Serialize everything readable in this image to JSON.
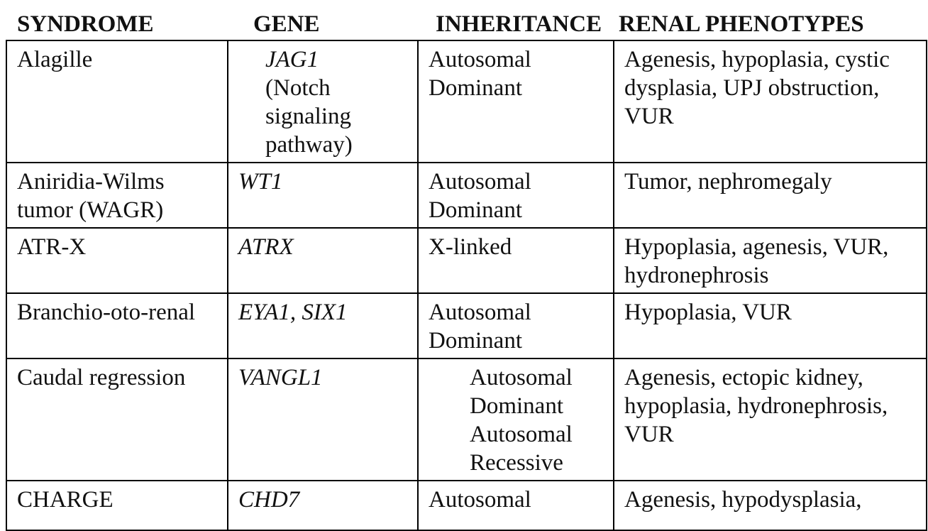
{
  "headers": {
    "syndrome": "SYNDROME",
    "gene": "GENE",
    "inheritance": "INHERITANCE",
    "renal": "RENAL PHENOTYPES"
  },
  "rows": [
    {
      "syndrome": "Alagille",
      "gene": "JAG1",
      "gene_note": [
        "(Notch",
        "signaling",
        "pathway)"
      ],
      "inheritance": [
        "Autosomal",
        "Dominant"
      ],
      "renal": [
        "Agenesis, hypoplasia, cystic",
        "dysplasia, UPJ obstruction,",
        "VUR"
      ]
    },
    {
      "syndrome": [
        "Aniridia-Wilms",
        "tumor (WAGR)"
      ],
      "gene": "WT1",
      "inheritance": [
        "Autosomal",
        "Dominant"
      ],
      "renal": [
        "Tumor, nephromegaly"
      ]
    },
    {
      "syndrome": "ATR-X",
      "gene": "ATRX",
      "inheritance": [
        "X-linked"
      ],
      "renal": [
        "Hypoplasia, agenesis, VUR,",
        "hydronephrosis"
      ]
    },
    {
      "syndrome": "Branchio-oto-renal",
      "gene": "EYA1, SIX1",
      "inheritance": [
        "Autosomal",
        "Dominant"
      ],
      "renal": [
        "Hypoplasia, VUR"
      ]
    },
    {
      "syndrome": "Caudal regression",
      "gene": "VANGL1",
      "inheritance": [
        "Autosomal",
        "Dominant",
        "Autosomal",
        "Recessive"
      ],
      "renal": [
        "Agenesis, ectopic kidney,",
        "hypoplasia, hydronephrosis,",
        "VUR"
      ]
    },
    {
      "syndrome": "CHARGE",
      "gene": "CHD7",
      "inheritance": [
        "Autosomal"
      ],
      "renal": [
        "Agenesis, hypodysplasia,"
      ]
    }
  ]
}
